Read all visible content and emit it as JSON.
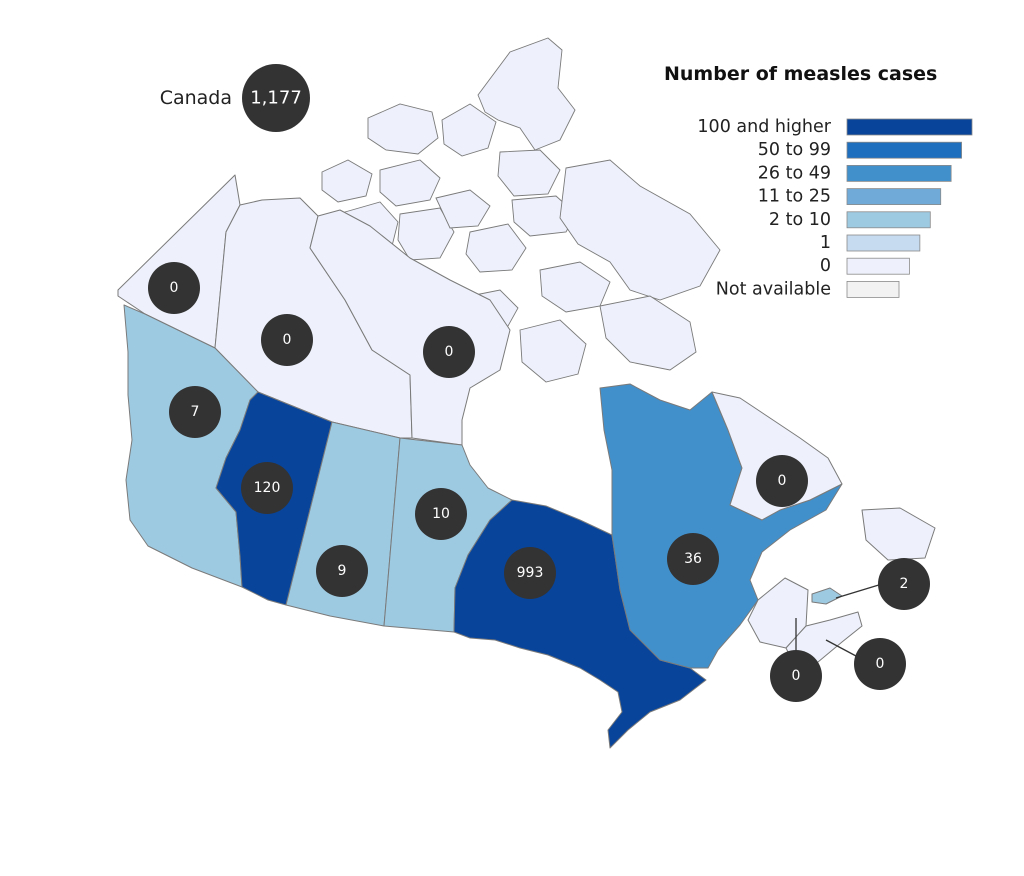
{
  "national": {
    "label": "Canada",
    "count": "1,177"
  },
  "legend": {
    "title": "Number of measles cases",
    "categories": [
      {
        "label": "100 and higher",
        "color": "#08449a"
      },
      {
        "label": "50 to 99",
        "color": "#1f6fbf"
      },
      {
        "label": "26 to 49",
        "color": "#4290cb"
      },
      {
        "label": "11 to 25",
        "color": "#6faad9"
      },
      {
        "label": "2 to 10",
        "color": "#9ecae1"
      },
      {
        "label": "1",
        "color": "#c6dbef"
      },
      {
        "label": "0",
        "color": "#eef1fb"
      },
      {
        "label": "Not available",
        "color": "#f2f2f2"
      }
    ]
  },
  "regions": [
    {
      "id": "yt",
      "count": "0",
      "color": "#eef1fb"
    },
    {
      "id": "nt",
      "count": "0",
      "color": "#eef1fb"
    },
    {
      "id": "nu",
      "count": "0",
      "color": "#eef1fb"
    },
    {
      "id": "bc",
      "count": "7",
      "color": "#9ecae1"
    },
    {
      "id": "ab",
      "count": "120",
      "color": "#08449a"
    },
    {
      "id": "sk",
      "count": "9",
      "color": "#9ecae1"
    },
    {
      "id": "mb",
      "count": "10",
      "color": "#9ecae1"
    },
    {
      "id": "on",
      "count": "993",
      "color": "#08449a"
    },
    {
      "id": "qc",
      "count": "36",
      "color": "#4290cb"
    },
    {
      "id": "nl",
      "count": "0",
      "color": "#eef1fb"
    },
    {
      "id": "pe",
      "count": "2",
      "color": "#9ecae1"
    },
    {
      "id": "nb",
      "count": "0",
      "color": "#eef1fb"
    },
    {
      "id": "ns",
      "count": "0",
      "color": "#eef1fb"
    }
  ]
}
